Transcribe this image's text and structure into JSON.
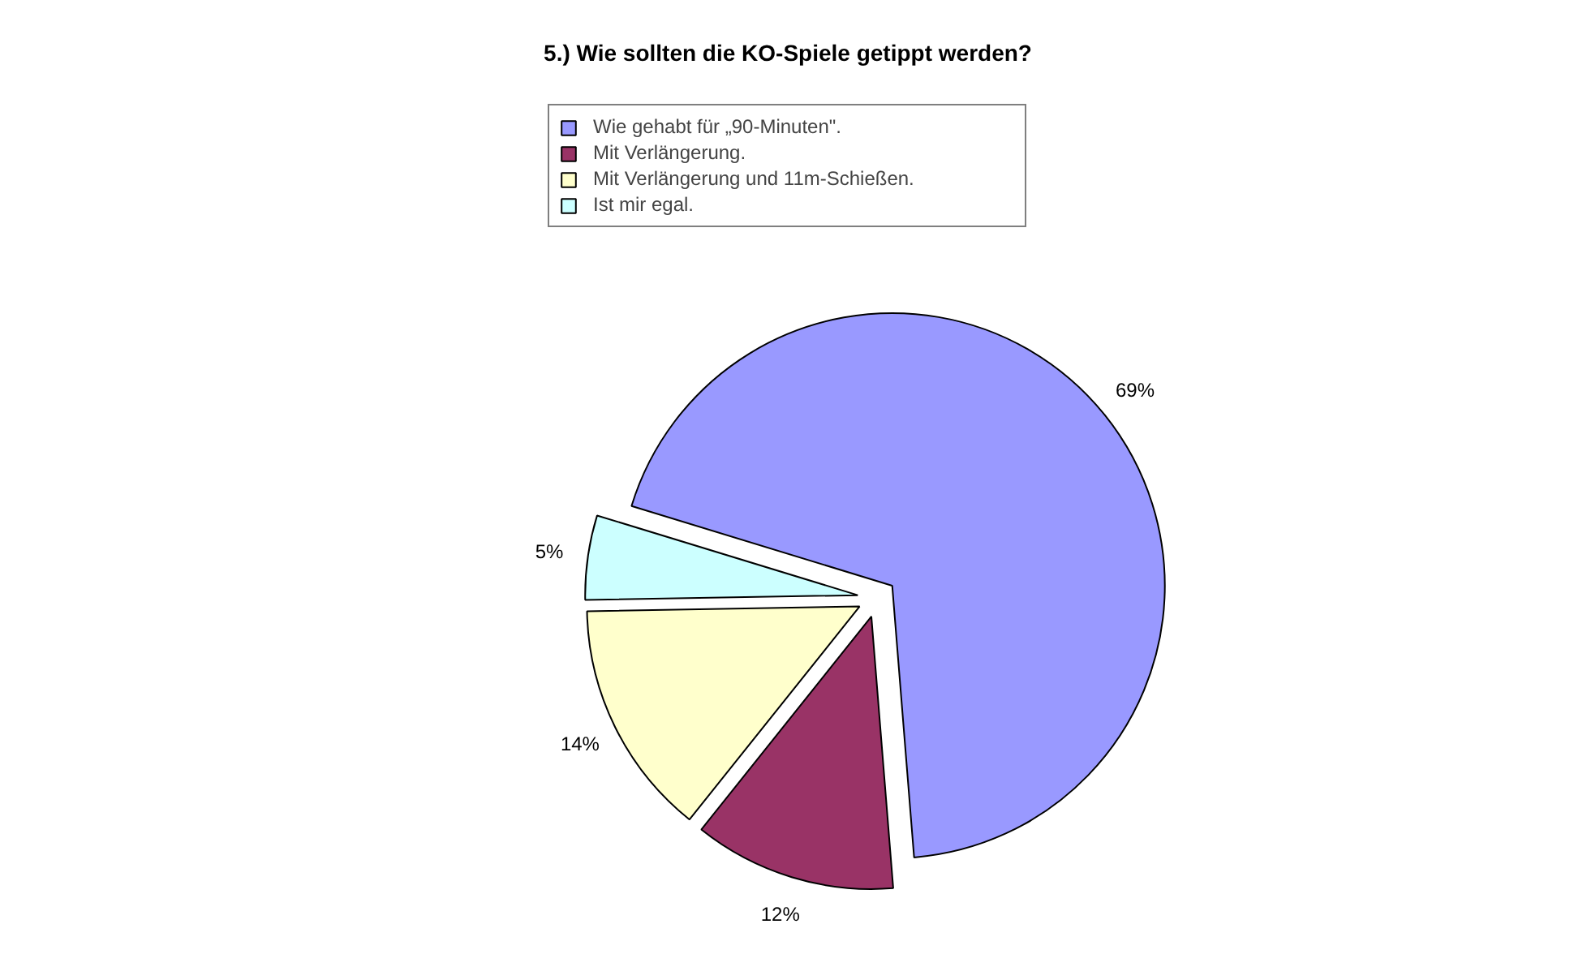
{
  "chart_data": {
    "type": "pie",
    "title": "5.) Wie sollten die KO-Spiele getippt werden?",
    "categories": [
      "Wie gehabt für „90-Minuten\".",
      "Mit Verlängerung.",
      "Mit Verlängerung und 11m-Schießen.",
      "Ist mir egal."
    ],
    "values": [
      69,
      12,
      14,
      5
    ],
    "colors": [
      "#9999ff",
      "#993366",
      "#ffffcc",
      "#ccffff"
    ],
    "value_labels": [
      "69%",
      "12%",
      "14%",
      "5%"
    ],
    "legend": "top"
  }
}
